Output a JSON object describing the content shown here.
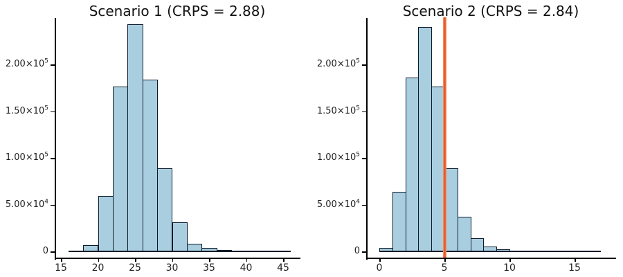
{
  "figure": {
    "background": "#ffffff",
    "axis_color": "#000000",
    "text_color": "#1f1f1f"
  },
  "chart_data": [
    {
      "type": "bar",
      "subtype": "histogram",
      "title": "Scenario 1 (CRPS = 2.88)",
      "xlabel": "",
      "ylabel": "",
      "grid": false,
      "legend": "none",
      "bar_fill": "#a9cee0",
      "bar_stroke": "#0d1b29",
      "bin_start": 16,
      "bin_width": 2,
      "values": [
        800,
        7000,
        59000,
        176000,
        243000,
        184000,
        89000,
        31000,
        8100,
        3500,
        1200,
        300,
        100,
        50,
        20
      ],
      "xlim": [
        14.2,
        47.6
      ],
      "ylim": [
        0,
        250000
      ],
      "xticks": [
        15,
        20,
        25,
        30,
        35,
        40,
        45
      ],
      "yticks": [
        {
          "value": 0,
          "mantissa": "0",
          "exponent": ""
        },
        {
          "value": 50000,
          "mantissa": "5.00×10",
          "exponent": "4"
        },
        {
          "value": 100000,
          "mantissa": "1.00×10",
          "exponent": "5"
        },
        {
          "value": 150000,
          "mantissa": "1.50×10",
          "exponent": "5"
        },
        {
          "value": 200000,
          "mantissa": "2.00×10",
          "exponent": "5"
        }
      ],
      "vline": null
    },
    {
      "type": "bar",
      "subtype": "histogram",
      "title": "Scenario 2 (CRPS = 2.84)",
      "xlabel": "",
      "ylabel": "",
      "grid": false,
      "legend": "none",
      "bar_fill": "#a9cee0",
      "bar_stroke": "#0d1b29",
      "bin_start": 0,
      "bin_width": 1,
      "values": [
        4000,
        64000,
        186000,
        240000,
        176000,
        89000,
        37000,
        14000,
        5000,
        2200,
        900,
        300,
        120,
        50,
        20,
        10,
        5
      ],
      "xlim": [
        -1.1,
        19.2
      ],
      "ylim": [
        0,
        250000
      ],
      "xticks": [
        0,
        5,
        10,
        15
      ],
      "yticks": [
        {
          "value": 0,
          "mantissa": "0",
          "exponent": ""
        },
        {
          "value": 50000,
          "mantissa": "5.00×10",
          "exponent": "4"
        },
        {
          "value": 100000,
          "mantissa": "1.00×10",
          "exponent": "5"
        },
        {
          "value": 150000,
          "mantissa": "1.50×10",
          "exponent": "5"
        },
        {
          "value": 200000,
          "mantissa": "2.00×10",
          "exponent": "5"
        }
      ],
      "vline": {
        "x": 5,
        "color_core": "#e1502a",
        "color_mid": "#ef6a38",
        "color_edge": "#f6a briefly"
      }
    }
  ]
}
